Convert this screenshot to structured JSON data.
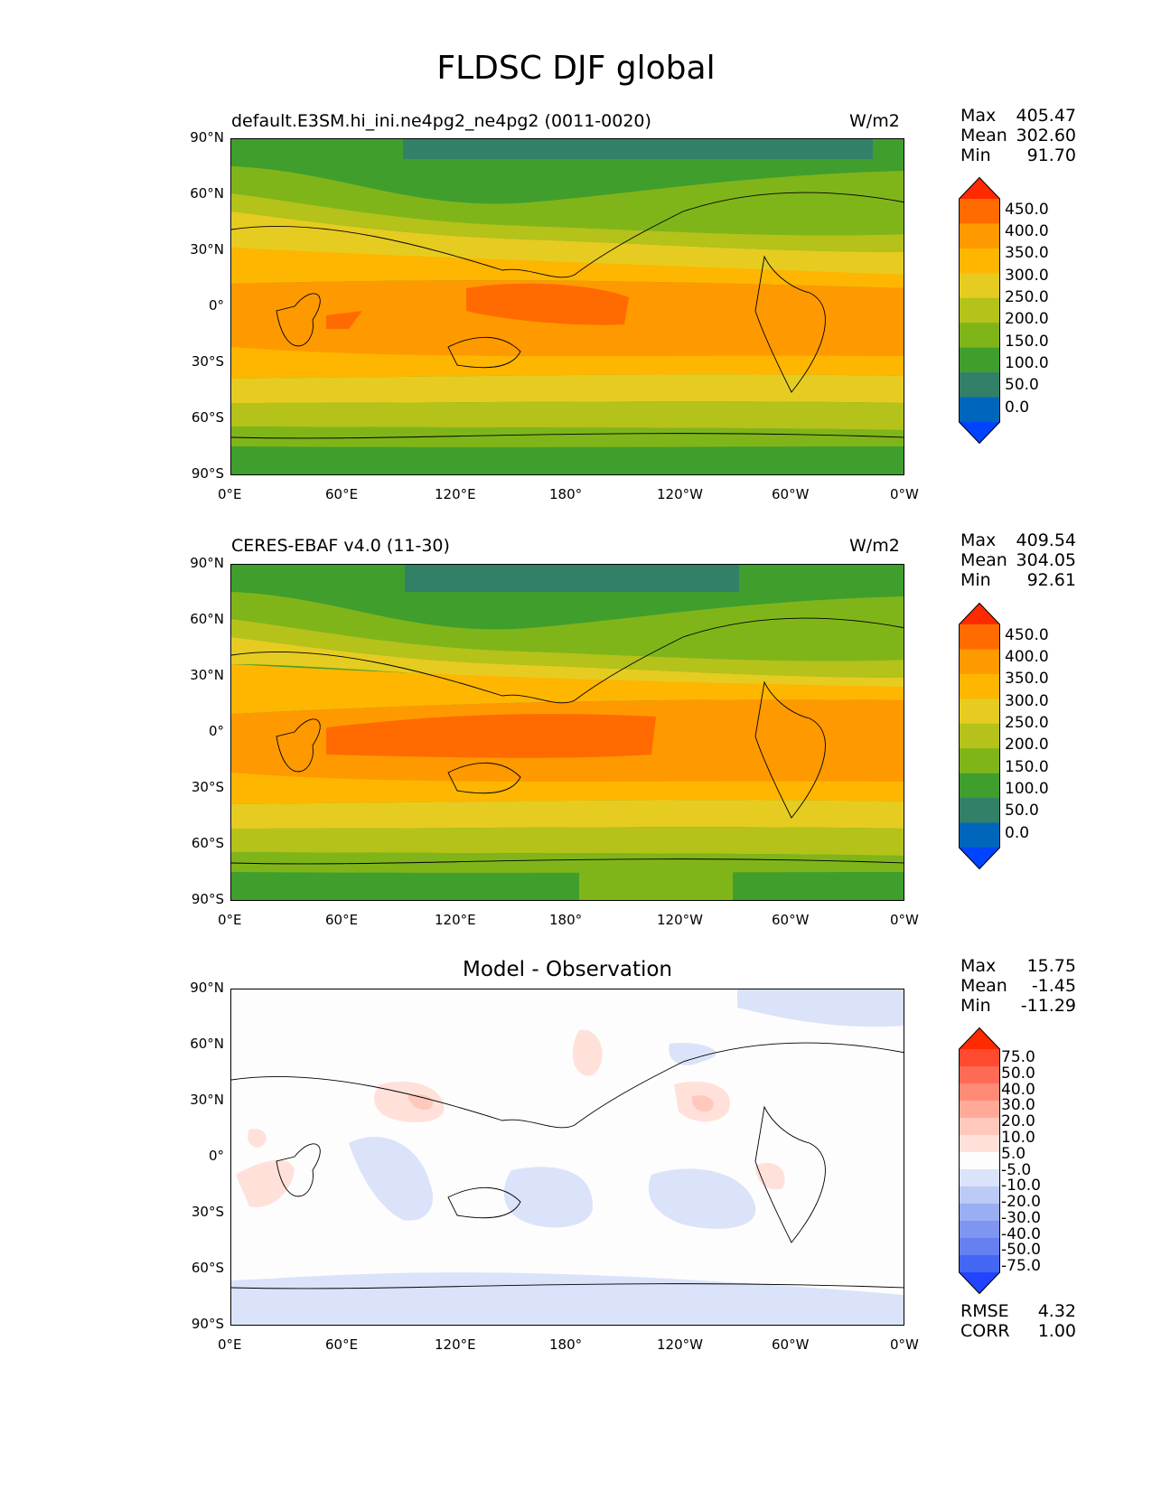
{
  "figure_title": "FLDSC DJF global",
  "panels": [
    {
      "title_left": "default.E3SM.hi_ini.ne4pg2_ne4pg2 (0011-0020)",
      "title_right": "W/m2",
      "stats": {
        "max_label": "Max",
        "max": "405.47",
        "mean_label": "Mean",
        "mean": "302.60",
        "min_label": "Min",
        "min": "91.70"
      }
    },
    {
      "title_left": "CERES-EBAF v4.0 (11-30)",
      "title_right": "W/m2",
      "stats": {
        "max_label": "Max",
        "max": "409.54",
        "mean_label": "Mean",
        "mean": "304.05",
        "min_label": "Min",
        "min": "92.61"
      }
    },
    {
      "title_center": "Model - Observation",
      "stats": {
        "max_label": "Max",
        "max": "15.75",
        "mean_label": "Mean",
        "mean": "-1.45",
        "min_label": "Min",
        "min": "-11.29"
      },
      "metrics": {
        "rmse_label": "RMSE",
        "rmse": "4.32",
        "corr_label": "CORR",
        "corr": "1.00"
      }
    }
  ],
  "axes": {
    "lat_ticks": [
      "90°N",
      "60°N",
      "30°N",
      "0°",
      "30°S",
      "60°S",
      "90°S"
    ],
    "lon_ticks": [
      "0°E",
      "60°E",
      "120°E",
      "180°",
      "120°W",
      "60°W",
      "0°W"
    ]
  },
  "colorbars": {
    "field_levels": [
      "450.0",
      "400.0",
      "350.0",
      "300.0",
      "250.0",
      "200.0",
      "150.0",
      "100.0",
      "50.0",
      "0.0"
    ],
    "field_colors": [
      "#ff2a00",
      "#ff6b00",
      "#ff9900",
      "#ffb600",
      "#e6cc20",
      "#b4c21a",
      "#80b519",
      "#409e2d",
      "#338068",
      "#0066bb",
      "#0044ff"
    ],
    "diff_levels": [
      "75.0",
      "50.0",
      "40.0",
      "30.0",
      "20.0",
      "10.0",
      "5.0",
      "-5.0",
      "-10.0",
      "-20.0",
      "-30.0",
      "-40.0",
      "-50.0",
      "-75.0"
    ],
    "diff_colors": [
      "#ff2a00",
      "#ff4a30",
      "#ff6a55",
      "#ff8a75",
      "#ffaa99",
      "#ffc8bd",
      "#ffe1da",
      "#fdfdfd",
      "#dbe3fa",
      "#bccbf6",
      "#9aaef2",
      "#7f96f0",
      "#6680f2",
      "#4466f5",
      "#2244ff"
    ]
  },
  "chart_data": [
    {
      "type": "heatmap",
      "title": "default.E3SM.hi_ini.ne4pg2_ne4pg2 (0011-0020)",
      "units": "W/m2",
      "variable": "FLDSC",
      "season": "DJF",
      "xlim": [
        0,
        360
      ],
      "ylim": [
        -90,
        90
      ],
      "zonal_profile": {
        "lat": [
          90,
          75,
          60,
          45,
          30,
          15,
          0,
          -15,
          -30,
          -45,
          -60,
          -75,
          -90
        ],
        "value": [
          100,
          140,
          175,
          225,
          300,
          350,
          375,
          360,
          330,
          275,
          240,
          180,
          140
        ]
      },
      "max": 405.47,
      "mean": 302.6,
      "min": 91.7
    },
    {
      "type": "heatmap",
      "title": "CERES-EBAF v4.0 (11-30)",
      "units": "W/m2",
      "variable": "FLDSC",
      "season": "DJF",
      "xlim": [
        0,
        360
      ],
      "ylim": [
        -90,
        90
      ],
      "zonal_profile": {
        "lat": [
          90,
          75,
          60,
          45,
          30,
          15,
          0,
          -15,
          -30,
          -45,
          -60,
          -75,
          -90
        ],
        "value": [
          100,
          140,
          180,
          225,
          300,
          350,
          380,
          360,
          330,
          275,
          240,
          180,
          140
        ]
      },
      "max": 409.54,
      "mean": 304.05,
      "min": 92.61
    },
    {
      "type": "heatmap",
      "title": "Model - Observation",
      "xlim": [
        0,
        360
      ],
      "ylim": [
        -90,
        90
      ],
      "max": 15.75,
      "mean": -1.45,
      "min": -11.29,
      "rmse": 4.32,
      "corr": 1.0
    }
  ]
}
